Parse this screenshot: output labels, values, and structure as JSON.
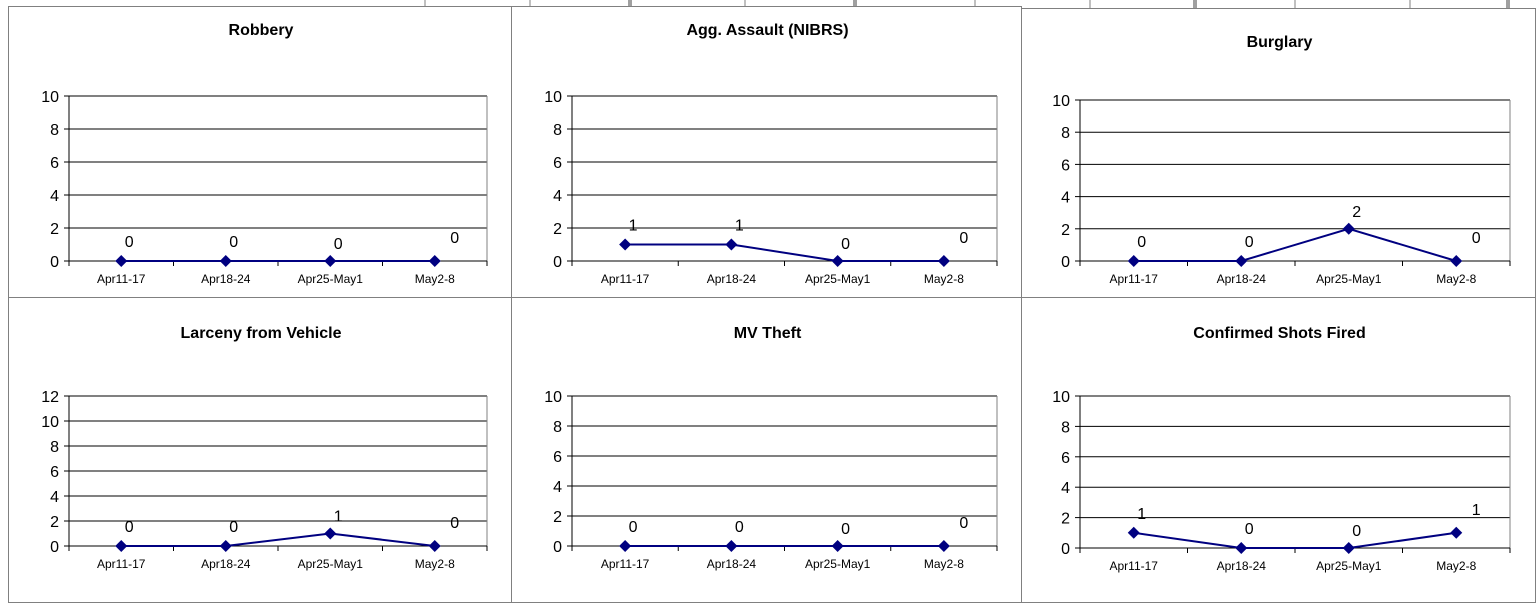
{
  "chart_data": [
    {
      "type": "line",
      "title": "Robbery",
      "categories": [
        "Apr11-17",
        "Apr18-24",
        "Apr25-May1",
        "May2-8"
      ],
      "series": [
        {
          "values": [
            0,
            0,
            0,
            0
          ]
        }
      ],
      "ylim": [
        0,
        10
      ],
      "yticks": [
        0,
        2,
        4,
        6,
        8,
        10
      ],
      "grid": true,
      "line_color": "#000080"
    },
    {
      "type": "line",
      "title": "Agg. Assault (NIBRS)",
      "categories": [
        "Apr11-17",
        "Apr18-24",
        "Apr25-May1",
        "May2-8"
      ],
      "series": [
        {
          "values": [
            1,
            1,
            0,
            0
          ]
        }
      ],
      "ylim": [
        0,
        10
      ],
      "yticks": [
        0,
        2,
        4,
        6,
        8,
        10
      ],
      "grid": true,
      "line_color": "#000080"
    },
    {
      "type": "line",
      "title": "Burglary",
      "categories": [
        "Apr11-17",
        "Apr18-24",
        "Apr25-May1",
        "May2-8"
      ],
      "series": [
        {
          "values": [
            0,
            0,
            2,
            0
          ]
        }
      ],
      "ylim": [
        0,
        10
      ],
      "yticks": [
        0,
        2,
        4,
        6,
        8,
        10
      ],
      "grid": true,
      "line_color": "#000080"
    },
    {
      "type": "line",
      "title": "Larceny from Vehicle",
      "categories": [
        "Apr11-17",
        "Apr18-24",
        "Apr25-May1",
        "May2-8"
      ],
      "series": [
        {
          "values": [
            0,
            0,
            1,
            0
          ]
        }
      ],
      "ylim": [
        0,
        12
      ],
      "yticks": [
        0,
        2,
        4,
        6,
        8,
        10,
        12
      ],
      "grid": true,
      "line_color": "#000080"
    },
    {
      "type": "line",
      "title": "MV Theft",
      "categories": [
        "Apr11-17",
        "Apr18-24",
        "Apr25-May1",
        "May2-8"
      ],
      "series": [
        {
          "values": [
            0,
            0,
            0,
            0
          ]
        }
      ],
      "ylim": [
        0,
        10
      ],
      "yticks": [
        0,
        2,
        4,
        6,
        8,
        10
      ],
      "grid": true,
      "line_color": "#000080"
    },
    {
      "type": "line",
      "title": "Confirmed Shots Fired",
      "categories": [
        "Apr11-17",
        "Apr18-24",
        "Apr25-May1",
        "May2-8"
      ],
      "series": [
        {
          "values": [
            1,
            0,
            0,
            1
          ]
        }
      ],
      "ylim": [
        0,
        10
      ],
      "yticks": [
        0,
        2,
        4,
        6,
        8,
        10
      ],
      "grid": true,
      "line_color": "#000080"
    }
  ]
}
